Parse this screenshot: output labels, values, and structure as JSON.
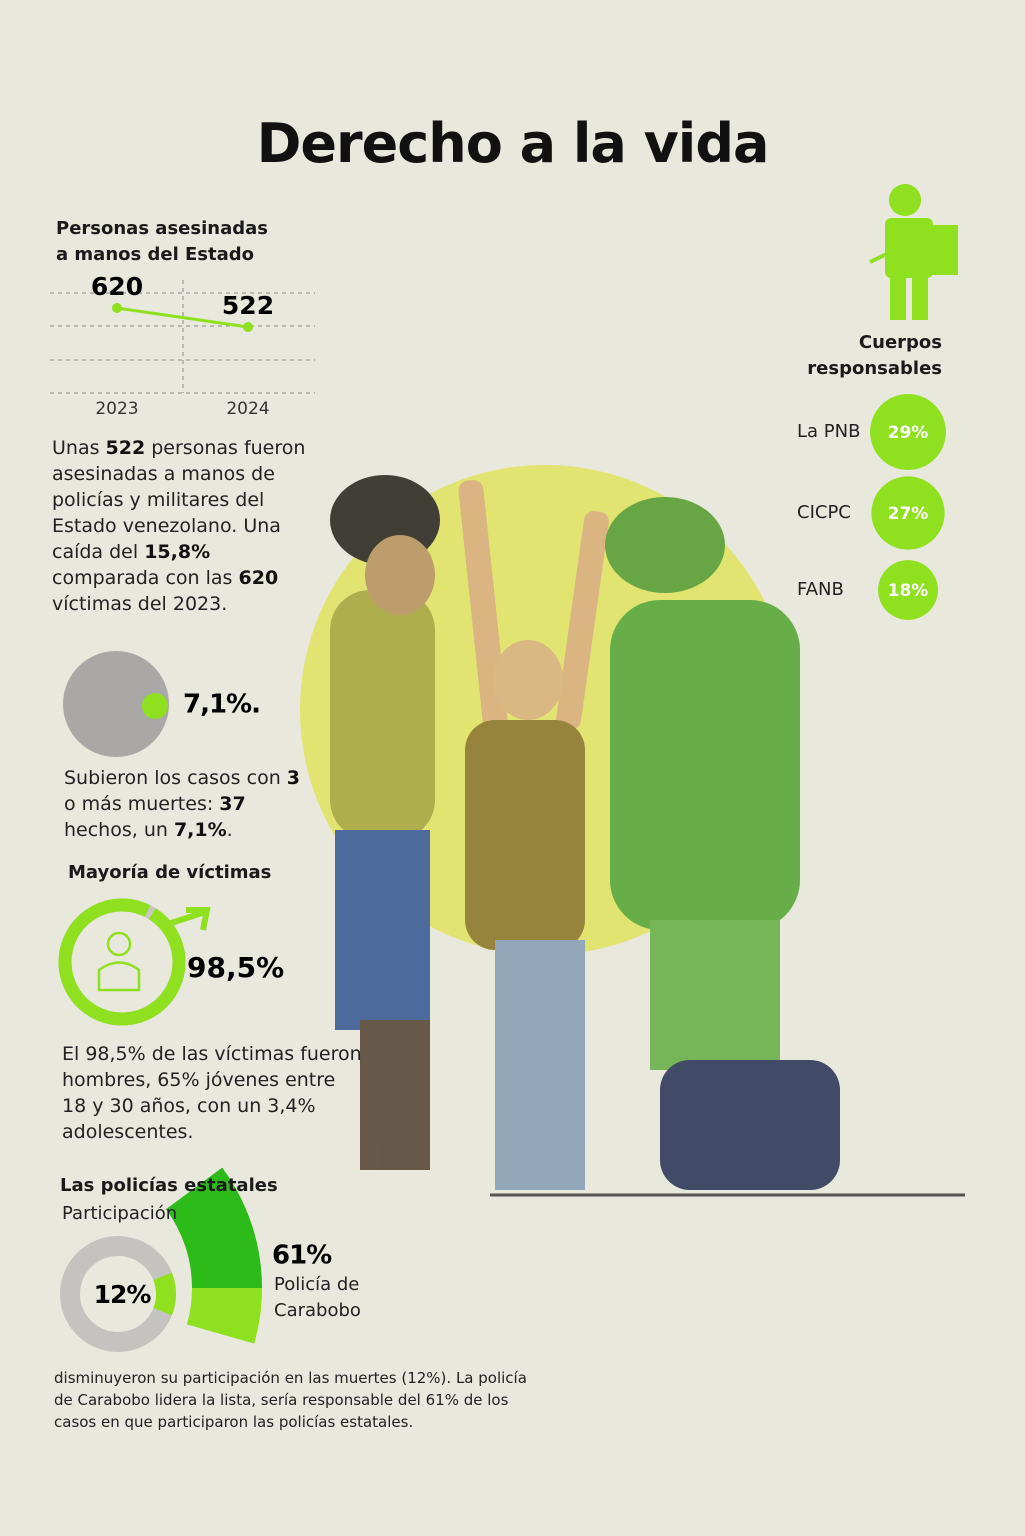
{
  "title": "Derecho a la vida",
  "chart_data": [
    {
      "type": "line",
      "title": "Personas asesinadas a manos del Estado",
      "categories": [
        "2023",
        "2024"
      ],
      "values": [
        620,
        522
      ],
      "color": "#8fe01f",
      "grid": true
    },
    {
      "type": "dot",
      "values": [
        7.1
      ],
      "value_labels": [
        "7,1%."
      ],
      "color": "#8fe01f"
    },
    {
      "type": "ring",
      "title": "Mayoría de víctimas",
      "values": [
        98.5
      ],
      "value_labels": [
        "98,5%"
      ],
      "color": "#8fe01f"
    },
    {
      "type": "bubble",
      "title": "Cuerpos responsables",
      "categories": [
        "La PNB",
        "CICPC",
        "FANB"
      ],
      "values": [
        29,
        27,
        18
      ],
      "value_labels": [
        "29%",
        "27%",
        "18%"
      ],
      "color": "#8fe01f"
    },
    {
      "type": "donut",
      "title": "Las policías estatales",
      "subtitle": "Participación",
      "values": [
        12
      ],
      "value_labels": [
        "12%"
      ],
      "color": "#8fe01f"
    },
    {
      "type": "fan",
      "categories": [
        "Policía de Carabobo"
      ],
      "values": [
        61
      ],
      "value_labels": [
        "61%"
      ],
      "color": "#2dbb1a"
    }
  ],
  "paragraphs": [
    [
      "Unas ",
      "522",
      " personas fueron asesinadas a manos de policías y militares del Estado venezolano. Una caída del ",
      "15,8%",
      " comparada con las ",
      "620",
      " víctimas del 2023."
    ],
    [
      "Subieron los casos con ",
      "3",
      " o más muertes: ",
      "37",
      " hechos, un ",
      "7,1%",
      "."
    ],
    [
      "El 98,5% de las víctimas fueron hombres, 65% jóvenes entre 18 y 30 años, con un 3,4% adolescentes."
    ],
    [
      "disminuyeron su participación en las muertes (12%). La policía de Carabobo lidera la lista, sería responsable del 61% de los casos en que participaron las policías estatales."
    ]
  ]
}
